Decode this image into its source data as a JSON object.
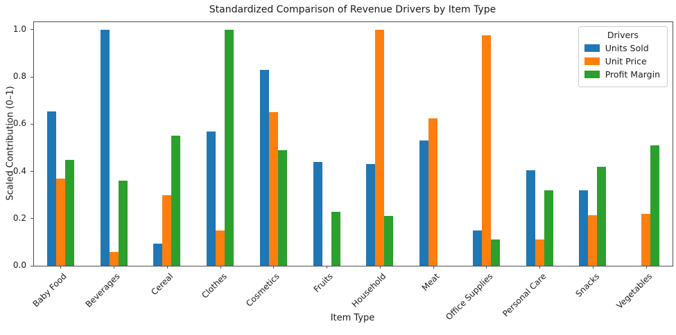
{
  "figure": {
    "title": "Standardized Comparison of Revenue Drivers by Item Type",
    "xlabel": "Item Type",
    "ylabel": "Scaled Contribution (0–1)"
  },
  "legend": {
    "title": "Drivers",
    "entries": [
      "Units Sold",
      "Unit Price",
      "Profit Margin"
    ]
  },
  "colors": {
    "units_sold": "#1f77b4",
    "unit_price": "#ff7f0e",
    "profit_margin": "#2ca02c",
    "axis": "#4d4d4d",
    "legend_border": "#cccccc"
  },
  "chart_data": {
    "type": "bar",
    "title": "Standardized Comparison of Revenue Drivers by Item Type",
    "xlabel": "Item Type",
    "ylabel": "Scaled Contribution (0–1)",
    "categories": [
      "Baby Food",
      "Beverages",
      "Cereal",
      "Clothes",
      "Cosmetics",
      "Fruits",
      "Household",
      "Meat",
      "Office Supplies",
      "Personal Care",
      "Snacks",
      "Vegetables"
    ],
    "series": [
      {
        "name": "Units Sold",
        "color": "#1f77b4",
        "values": [
          0.655,
          1.0,
          0.095,
          0.57,
          0.83,
          0.44,
          0.43,
          0.53,
          0.15,
          0.405,
          0.32,
          0.0
        ]
      },
      {
        "name": "Unit Price",
        "color": "#ff7f0e",
        "values": [
          0.37,
          0.06,
          0.3,
          0.15,
          0.65,
          0.0,
          1.0,
          0.625,
          0.975,
          0.11,
          0.215,
          0.22
        ]
      },
      {
        "name": "Profit Margin",
        "color": "#2ca02c",
        "values": [
          0.45,
          0.36,
          0.55,
          1.0,
          0.49,
          0.23,
          0.21,
          0.0,
          0.11,
          0.32,
          0.42,
          0.51
        ]
      }
    ],
    "yticks": [
      0.0,
      0.2,
      0.4,
      0.6,
      0.8,
      1.0
    ],
    "ytick_labels": [
      "0.0",
      "0.2",
      "0.4",
      "0.6",
      "0.8",
      "1.0"
    ],
    "ylim": [
      0,
      1.032
    ],
    "grid": false,
    "legend_title": "Drivers",
    "legend_position": "upper right",
    "x_tick_rotation": 45
  }
}
